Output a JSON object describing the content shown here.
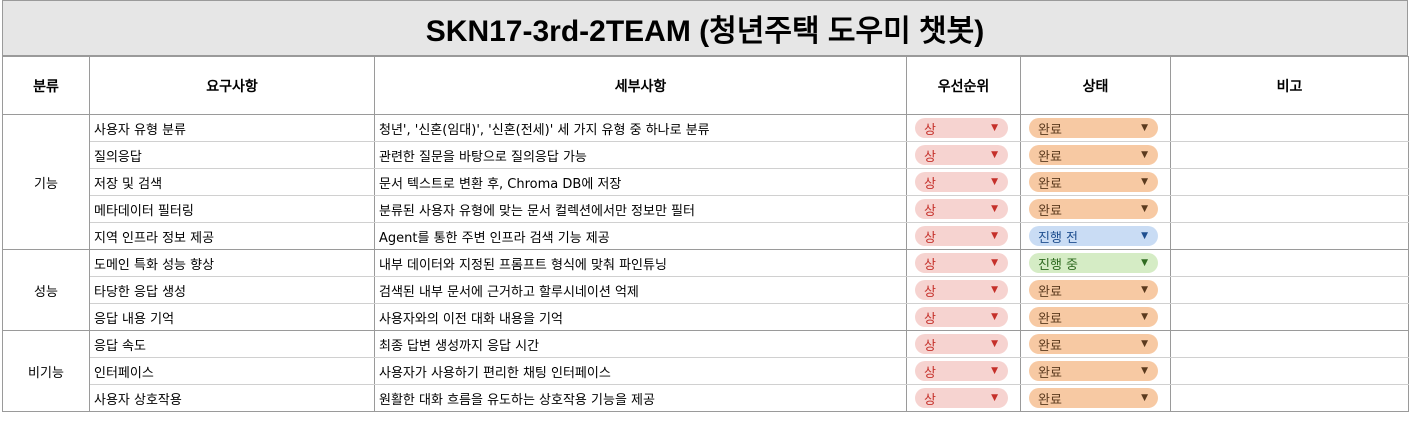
{
  "title": "SKN17-3rd-2TEAM (청년주택 도우미 챗봇)",
  "headers": [
    "분류",
    "요구사항",
    "세부사항",
    "우선순위",
    "상태",
    "비고"
  ],
  "dropdown_arrow": "▼",
  "status_colors": {
    "상": {
      "bg": "#f6d3d0",
      "fg": "#c5302a"
    },
    "완료": {
      "bg": "#f7c9a3",
      "fg": "#5b3a1e"
    },
    "진행 전": {
      "bg": "#c9dcf4",
      "fg": "#1f4f8f"
    },
    "진행 중": {
      "bg": "#d5ecc5",
      "fg": "#2f6b21"
    }
  },
  "groups": [
    {
      "category": "기능",
      "rows": [
        {
          "requirement": "사용자 유형 분류",
          "detail": "청년', '신혼(임대)', '신혼(전세)' 세 가지 유형 중 하나로 분류",
          "priority": "상",
          "status": "완료",
          "note": ""
        },
        {
          "requirement": "질의응답",
          "detail": "관련한 질문을 바탕으로 질의응답 가능",
          "priority": "상",
          "status": "완료",
          "note": ""
        },
        {
          "requirement": "저장 및 검색",
          "detail": "문서 텍스트로 변환 후, Chroma DB에 저장",
          "priority": "상",
          "status": "완료",
          "note": ""
        },
        {
          "requirement": "메타데이터 필터링",
          "detail": "분류된 사용자 유형에 맞는 문서 컬렉션에서만 정보만 필터",
          "priority": "상",
          "status": "완료",
          "note": ""
        },
        {
          "requirement": "지역 인프라 정보 제공",
          "detail": "Agent를 통한 주변 인프라 검색 기능 제공",
          "priority": "상",
          "status": "진행 전",
          "note": ""
        }
      ]
    },
    {
      "category": "성능",
      "rows": [
        {
          "requirement": "도메인 특화 성능 향상",
          "detail": "내부 데이터와 지정된 프롬프트 형식에 맞춰 파인튜닝",
          "priority": "상",
          "status": "진행 중",
          "note": ""
        },
        {
          "requirement": "타당한 응답 생성",
          "detail": "검색된 내부 문서에 근거하고 할루시네이션 억제",
          "priority": "상",
          "status": "완료",
          "note": ""
        },
        {
          "requirement": "응답 내용 기억",
          "detail": "사용자와의 이전 대화 내용을 기억",
          "priority": "상",
          "status": "완료",
          "note": ""
        }
      ]
    },
    {
      "category": "비기능",
      "rows": [
        {
          "requirement": "응답 속도",
          "detail": "최종 답변 생성까지 응답 시간",
          "priority": "상",
          "status": "완료",
          "note": ""
        },
        {
          "requirement": "인터페이스",
          "detail": "사용자가 사용하기 편리한 채팅 인터페이스",
          "priority": "상",
          "status": "완료",
          "note": ""
        },
        {
          "requirement": "사용자 상호작용",
          "detail": "원활한 대화 흐름을 유도하는 상호작용 기능을 제공",
          "priority": "상",
          "status": "완료",
          "note": ""
        }
      ]
    }
  ]
}
